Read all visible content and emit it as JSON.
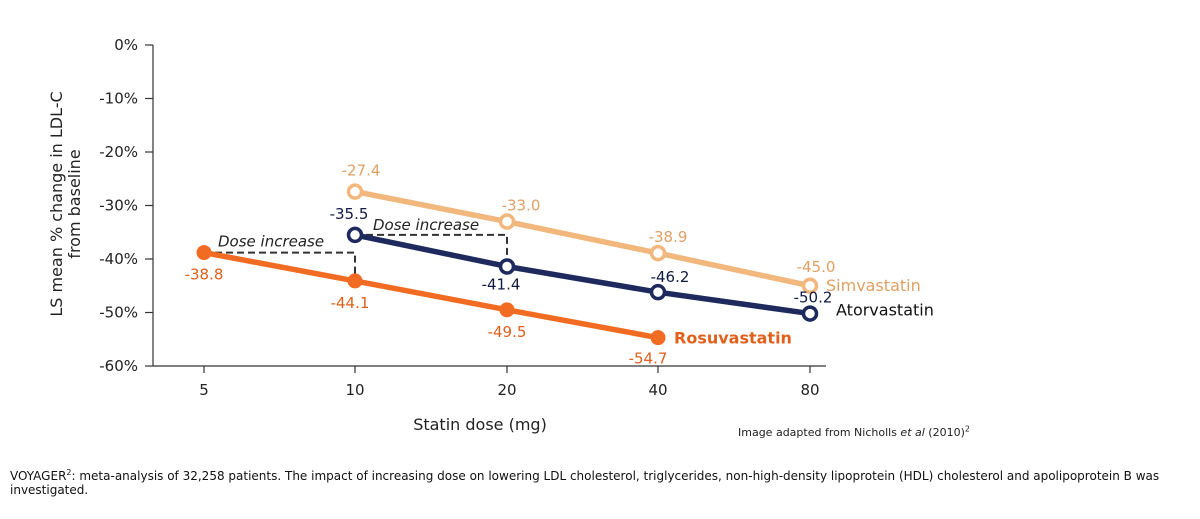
{
  "chart_data": {
    "type": "line",
    "categories": [
      "5",
      "10",
      "20",
      "40",
      "80"
    ],
    "xlabel": "Statin dose (mg)",
    "ylabel_line1": "LS mean % change in LDL-C",
    "ylabel_line2": "from baseline",
    "ylim": [
      -60,
      0
    ],
    "yticks": [
      0,
      -10,
      -20,
      -30,
      -40,
      -50,
      -60
    ],
    "ytick_labels": [
      "0%",
      "-10%",
      "-20%",
      "-30%",
      "-40%",
      "-50%",
      "-60%"
    ],
    "grid": false,
    "series": [
      {
        "name": "Simvastatin",
        "color": "#f2b77c",
        "label_color": "#e0a064",
        "marker": "hollow-circle",
        "bold_name": false,
        "points": [
          {
            "x": "10",
            "y": -27.4,
            "label": "-27.4"
          },
          {
            "x": "20",
            "y": -33.0,
            "label": "-33.0"
          },
          {
            "x": "40",
            "y": -38.9,
            "label": "-38.9"
          },
          {
            "x": "80",
            "y": -45.0,
            "label": "-45.0"
          }
        ]
      },
      {
        "name": "Atorvastatin",
        "color": "#1e2a5e",
        "label_color": "#111a44",
        "marker": "hollow-circle",
        "bold_name": false,
        "points": [
          {
            "x": "10",
            "y": -35.5,
            "label": "-35.5"
          },
          {
            "x": "20",
            "y": -41.4,
            "label": "-41.4"
          },
          {
            "x": "40",
            "y": -46.2,
            "label": "-46.2"
          },
          {
            "x": "80",
            "y": -50.2,
            "label": "-50.2"
          }
        ]
      },
      {
        "name": "Rosuvastatin",
        "color": "#f26b22",
        "label_color": "#e0601c",
        "marker": "filled-circle",
        "bold_name": true,
        "points": [
          {
            "x": "5",
            "y": -38.8,
            "label": "-38.8"
          },
          {
            "x": "10",
            "y": -44.1,
            "label": "-44.1"
          },
          {
            "x": "20",
            "y": -49.5,
            "label": "-49.5"
          },
          {
            "x": "40",
            "y": -54.7,
            "label": "-54.7"
          }
        ]
      }
    ],
    "annotations": [
      {
        "text": "Dose increase",
        "from": {
          "x": "5",
          "y": -38.8
        },
        "to": {
          "x": "10",
          "y": -44.1
        }
      },
      {
        "text": "Dose increase",
        "from": {
          "x": "10",
          "y": -35.5
        },
        "to": {
          "x": "20",
          "y": -41.4
        }
      }
    ]
  },
  "credit": {
    "prefix": "Image adapted from Nicholls ",
    "italic": "et al",
    "suffix": " (2010)",
    "sup": "2"
  },
  "footnote": {
    "study": "VOYAGER",
    "sup": "2",
    "text": ": meta-analysis of 32,258 patients. The impact of increasing dose on lowering LDL cholesterol, triglycerides, non-high-density lipoprotein (HDL) cholesterol and apolipoprotein B was investigated."
  }
}
